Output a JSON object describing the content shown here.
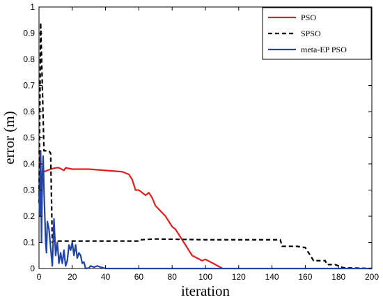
{
  "chart_data": {
    "type": "line",
    "title": "",
    "xlabel": "iteration",
    "ylabel": "error  (m)",
    "xlim": [
      0,
      200
    ],
    "ylim": [
      0,
      1
    ],
    "xticks": [
      "0",
      "20",
      "40",
      "60",
      "80",
      "100",
      "120",
      "140",
      "160",
      "180",
      "200"
    ],
    "yticks": [
      "0",
      "0.1",
      "0.2",
      "0.3",
      "0.4",
      "0.5",
      "0.6",
      "0.7",
      "0.8",
      "0.9",
      "1"
    ],
    "grid": false,
    "legend_position": "top-right",
    "series": [
      {
        "name": "PSO",
        "color": "#e02020",
        "dash": "solid",
        "points": [
          [
            0,
            0.45
          ],
          [
            1,
            0.37
          ],
          [
            3,
            0.37
          ],
          [
            5,
            0.375
          ],
          [
            7,
            0.38
          ],
          [
            10,
            0.385
          ],
          [
            12,
            0.385
          ],
          [
            15,
            0.375
          ],
          [
            16,
            0.385
          ],
          [
            20,
            0.38
          ],
          [
            25,
            0.38
          ],
          [
            30,
            0.38
          ],
          [
            40,
            0.375
          ],
          [
            50,
            0.37
          ],
          [
            54,
            0.36
          ],
          [
            56,
            0.34
          ],
          [
            58,
            0.3
          ],
          [
            60,
            0.3
          ],
          [
            62,
            0.29
          ],
          [
            64,
            0.28
          ],
          [
            66,
            0.29
          ],
          [
            68,
            0.27
          ],
          [
            70,
            0.24
          ],
          [
            73,
            0.22
          ],
          [
            76,
            0.2
          ],
          [
            78,
            0.18
          ],
          [
            80,
            0.16
          ],
          [
            82,
            0.15
          ],
          [
            84,
            0.13
          ],
          [
            86,
            0.11
          ],
          [
            88,
            0.09
          ],
          [
            90,
            0.07
          ],
          [
            92,
            0.05
          ],
          [
            95,
            0.04
          ],
          [
            98,
            0.03
          ],
          [
            100,
            0.035
          ],
          [
            103,
            0.025
          ],
          [
            106,
            0.015
          ],
          [
            108,
            0.008
          ],
          [
            110,
            0.002
          ]
        ]
      },
      {
        "name": "SPSO",
        "color": "#000000",
        "dash": "dashed",
        "points": [
          [
            0,
            0.25
          ],
          [
            1,
            0.94
          ],
          [
            2,
            0.7
          ],
          [
            3,
            0.45
          ],
          [
            4,
            0.45
          ],
          [
            5,
            0.45
          ],
          [
            6,
            0.45
          ],
          [
            7,
            0.44
          ],
          [
            8,
            0.1
          ],
          [
            9,
            0.105
          ],
          [
            20,
            0.105
          ],
          [
            40,
            0.105
          ],
          [
            60,
            0.105
          ],
          [
            61,
            0.11
          ],
          [
            70,
            0.113
          ],
          [
            80,
            0.112
          ],
          [
            100,
            0.11
          ],
          [
            120,
            0.11
          ],
          [
            130,
            0.11
          ],
          [
            145,
            0.11
          ],
          [
            146,
            0.085
          ],
          [
            155,
            0.085
          ],
          [
            160,
            0.08
          ],
          [
            163,
            0.05
          ],
          [
            165,
            0.03
          ],
          [
            172,
            0.03
          ],
          [
            173,
            0.015
          ],
          [
            178,
            0.015
          ],
          [
            180,
            0.01
          ],
          [
            182,
            0.005
          ],
          [
            183,
            0.003
          ],
          [
            200,
            0.0
          ]
        ]
      },
      {
        "name": "meta-EP PSO",
        "color": "#2244aa",
        "dash": "solid",
        "points": [
          [
            0,
            0.3
          ],
          [
            0.5,
            0.2
          ],
          [
            1,
            0.45
          ],
          [
            1.5,
            0.1
          ],
          [
            2,
            0.35
          ],
          [
            2.5,
            0.43
          ],
          [
            3,
            0.3
          ],
          [
            3.5,
            0.2
          ],
          [
            4,
            0.1
          ],
          [
            4.5,
            0.06
          ],
          [
            5,
            0.18
          ],
          [
            6,
            0.15
          ],
          [
            7,
            0.08
          ],
          [
            8,
            0.01
          ],
          [
            9,
            0.19
          ],
          [
            10,
            0.05
          ],
          [
            11,
            0.1
          ],
          [
            12,
            0.02
          ],
          [
            13,
            0.06
          ],
          [
            14,
            0.02
          ],
          [
            15,
            0.07
          ],
          [
            16,
            0.01
          ],
          [
            17,
            0.03
          ],
          [
            18,
            0.09
          ],
          [
            19,
            0.07
          ],
          [
            20,
            0.1
          ],
          [
            21,
            0.05
          ],
          [
            22,
            0.09
          ],
          [
            23,
            0.04
          ],
          [
            24,
            0.06
          ],
          [
            25,
            0.05
          ],
          [
            26,
            0.02
          ],
          [
            27,
            0.025
          ],
          [
            28,
            0.0
          ],
          [
            30,
            0.002
          ],
          [
            31,
            0.01
          ],
          [
            33,
            0.005
          ],
          [
            35,
            0.01
          ],
          [
            37,
            0.005
          ],
          [
            39,
            0.002
          ],
          [
            40,
            0.0
          ],
          [
            60,
            0.0
          ],
          [
            100,
            0.0
          ],
          [
            150,
            0.0
          ],
          [
            200,
            0.0
          ]
        ]
      }
    ]
  }
}
